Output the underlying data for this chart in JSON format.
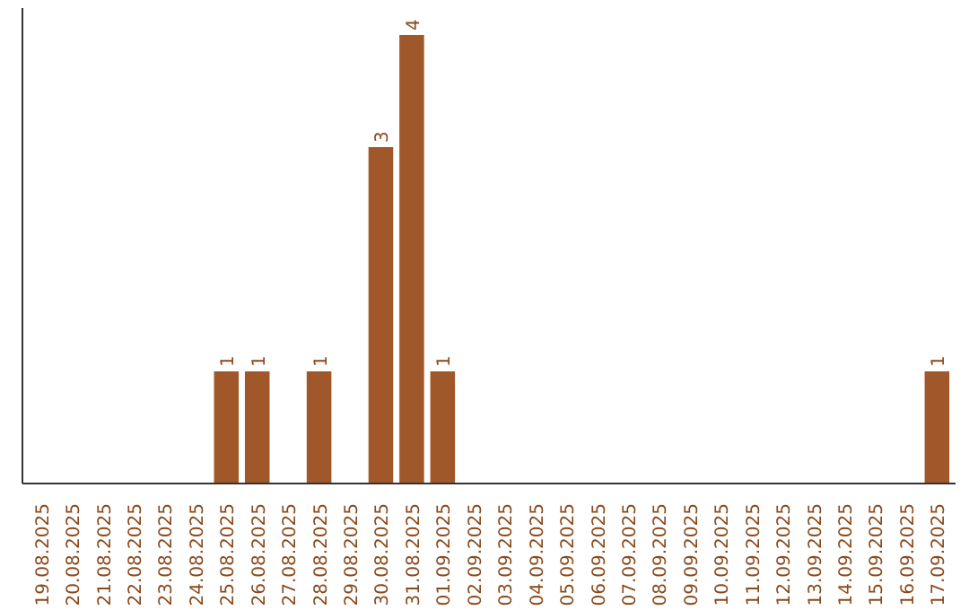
{
  "chart_data": {
    "type": "bar",
    "categories": [
      "19.08.2025",
      "20.08.2025",
      "21.08.2025",
      "22.08.2025",
      "23.08.2025",
      "24.08.2025",
      "25.08.2025",
      "26.08.2025",
      "27.08.2025",
      "28.08.2025",
      "29.08.2025",
      "30.08.2025",
      "31.08.2025",
      "01.09.2025",
      "02.09.2025",
      "03.09.2025",
      "04.09.2025",
      "05.09.2025",
      "06.09.2025",
      "07.09.2025",
      "08.09.2025",
      "09.09.2025",
      "10.09.2025",
      "11.09.2025",
      "12.09.2025",
      "13.09.2025",
      "14.09.2025",
      "15.09.2025",
      "16.09.2025",
      "17.09.2025"
    ],
    "values": [
      0,
      0,
      0,
      0,
      0,
      0,
      1,
      1,
      0,
      1,
      0,
      3,
      4,
      1,
      0,
      0,
      0,
      0,
      0,
      0,
      0,
      0,
      0,
      0,
      0,
      0,
      0,
      0,
      0,
      1
    ],
    "value_labels": [
      null,
      null,
      null,
      null,
      null,
      null,
      "1",
      "1",
      null,
      "1",
      null,
      "3",
      "4",
      "1",
      null,
      null,
      null,
      null,
      null,
      null,
      null,
      null,
      null,
      null,
      null,
      null,
      null,
      null,
      null,
      "1"
    ],
    "color": "#a0582a"
  }
}
